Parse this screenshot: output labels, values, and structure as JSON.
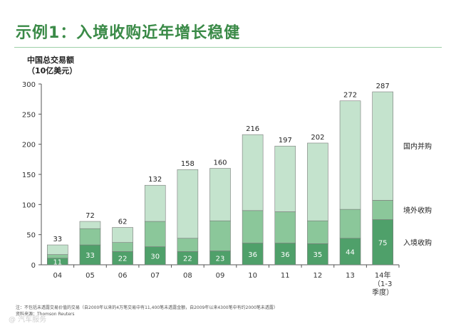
{
  "header": {
    "title": "示例1：入境收购近年增长稳健"
  },
  "colors": {
    "title": "#3a8a47",
    "inbound": "#4fa06a",
    "outbound": "#8bc79a",
    "domestic": "#c4e3cd",
    "edge": "#7a7a7a"
  },
  "chart_data": {
    "type": "bar",
    "stacked": true,
    "ylabel_lines": [
      "中国总交易额",
      "（10亿美元）"
    ],
    "ylim": [
      0,
      300
    ],
    "yticks": [
      0,
      50,
      100,
      150,
      200,
      250,
      300
    ],
    "categories": [
      "04",
      "05",
      "06",
      "07",
      "08",
      "09",
      "10",
      "11",
      "12",
      "13",
      "14年\n（1-3\n季度）"
    ],
    "series": [
      {
        "name": "入境收购",
        "values": [
          11,
          33,
          22,
          30,
          22,
          23,
          36,
          36,
          35,
          44,
          75
        ],
        "color": "#4fa06a"
      },
      {
        "name": "境外收购",
        "values": [
          6,
          27,
          15,
          42,
          22,
          50,
          54,
          52,
          38,
          48,
          32
        ],
        "color": "#8bc79a"
      },
      {
        "name": "国内并购",
        "values": [
          16,
          12,
          25,
          60,
          114,
          87,
          126,
          109,
          129,
          180,
          180
        ],
        "color": "#c4e3cd"
      }
    ],
    "totals": [
      33,
      72,
      62,
      132,
      158,
      160,
      216,
      197,
      202,
      272,
      287
    ],
    "inbound_labels": [
      11,
      33,
      22,
      30,
      22,
      23,
      36,
      36,
      35,
      44,
      75
    ],
    "legend_placement": "right"
  },
  "footnote": {
    "line1": "注：不包括未透露交易价值的交易（自2000年以来的4万笔交易中有11,400笔未透露金额，自2009年以来4300笔中有约2000笔未透露）",
    "line2": "资料来源：Thomson Reuters"
  },
  "watermark": "@ 汽车服务"
}
